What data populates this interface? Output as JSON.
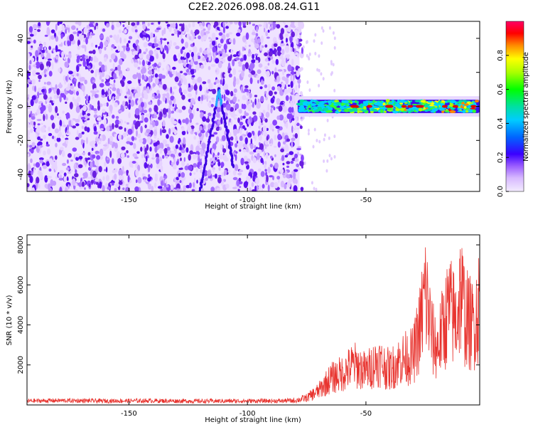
{
  "title": "C2E2.2026.098.08.24.G11",
  "chart_data": [
    {
      "type": "heatmap",
      "title": "C2E2.2026.098.08.24.G11",
      "xlabel": "Height of straight line (km)",
      "ylabel": "Frequency (Hz)",
      "xlim": [
        -193,
        -2
      ],
      "ylim": [
        -50,
        50
      ],
      "xticks": [
        -150,
        -100,
        -50
      ],
      "yticks": [
        -40,
        -20,
        0,
        20,
        40
      ],
      "xtick_labels": [
        "-150",
        "-100",
        "-50"
      ],
      "ytick_labels": [
        "-40",
        "-20",
        "0",
        "20",
        "40"
      ],
      "noise_region_x": [
        -193,
        -78
      ],
      "chirp_track": {
        "x": [
          -120,
          -112,
          -106
        ],
        "y": [
          -50,
          10,
          -35
        ]
      },
      "signal_band": {
        "x_start": -80,
        "x_end": -2,
        "center_frequency": 0,
        "bandwidth": 6
      },
      "colorbar": {
        "label": "Normalized spectral amplitude",
        "range": [
          0,
          1
        ],
        "ticks": [
          0,
          0.2,
          0.4,
          0.6,
          0.8
        ],
        "tick_labels": [
          "0.0",
          "0.2",
          "0.4",
          "0.6",
          "0.8"
        ]
      }
    },
    {
      "type": "line",
      "xlabel": "Height of straight line (km)",
      "ylabel": "SNR (10 * v/v)",
      "xlim": [
        -193,
        -2
      ],
      "ylim": [
        0,
        8500
      ],
      "xticks": [
        -150,
        -100,
        -50
      ],
      "yticks": [
        2000,
        4000,
        6000,
        8000
      ],
      "xtick_labels": [
        "-150",
        "-100",
        "-50"
      ],
      "ytick_labels": [
        "2000",
        "4000",
        "6000",
        "8000"
      ],
      "series": [
        {
          "name": "SNR",
          "color": "#e8332e",
          "x": [
            -193,
            -180,
            -160,
            -140,
            -120,
            -100,
            -85,
            -80,
            -75,
            -70,
            -65,
            -60,
            -55,
            -50,
            -45,
            -40,
            -35,
            -30,
            -27,
            -25,
            -22,
            -20,
            -15,
            -12,
            -10,
            -8,
            -5,
            -2
          ],
          "y": [
            200,
            220,
            200,
            210,
            190,
            200,
            200,
            250,
            400,
            800,
            1500,
            1800,
            2300,
            1900,
            2500,
            2000,
            2600,
            2800,
            4500,
            6500,
            3800,
            3200,
            5500,
            4800,
            6500,
            5000,
            4500,
            5800
          ]
        }
      ]
    }
  ],
  "colors": {
    "line": "#e8332e",
    "noise": "#6a1fe0",
    "frame": "#000000"
  }
}
